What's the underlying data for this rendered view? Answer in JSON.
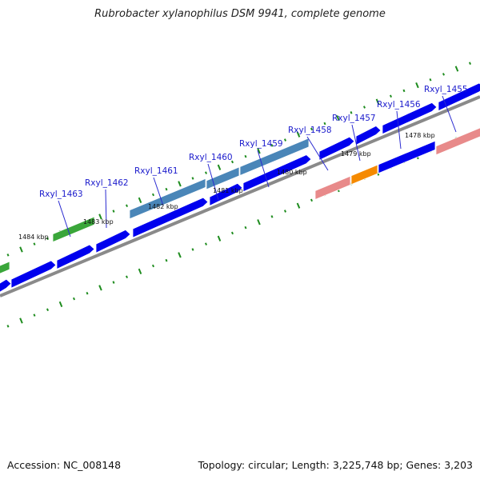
{
  "title": "Rubrobacter xylanophilus DSM 9941, complete genome",
  "accession": "Accession: NC_008148",
  "summary": "Topology: circular; Length: 3,225,748 bp; Genes: 3,203",
  "colors": {
    "cds": "#0000ee",
    "backbone": "#8a8a8a",
    "tick": "#1e8c1e",
    "label_line": "#2a2ad0",
    "feature_steelblue": "#4a86b8",
    "feature_salmon": "#e88a8a",
    "feature_orange": "#f58a00",
    "feature_green": "#3aa63a"
  },
  "kbp_labels": [
    "1484 kbp",
    "1483 kbp",
    "1482 kbp",
    "1481 kbp",
    "1480 kbp",
    "1479 kbp",
    "1478 kbp"
  ],
  "genes": [
    {
      "name": "Rxyl_1463"
    },
    {
      "name": "Rxyl_1462"
    },
    {
      "name": "Rxyl_1461"
    },
    {
      "name": "Rxyl_1460"
    },
    {
      "name": "Rxyl_1459"
    },
    {
      "name": "Rxyl_1458"
    },
    {
      "name": "Rxyl_1457"
    },
    {
      "name": "Rxyl_1456"
    },
    {
      "name": "Rxyl_1455"
    }
  ]
}
